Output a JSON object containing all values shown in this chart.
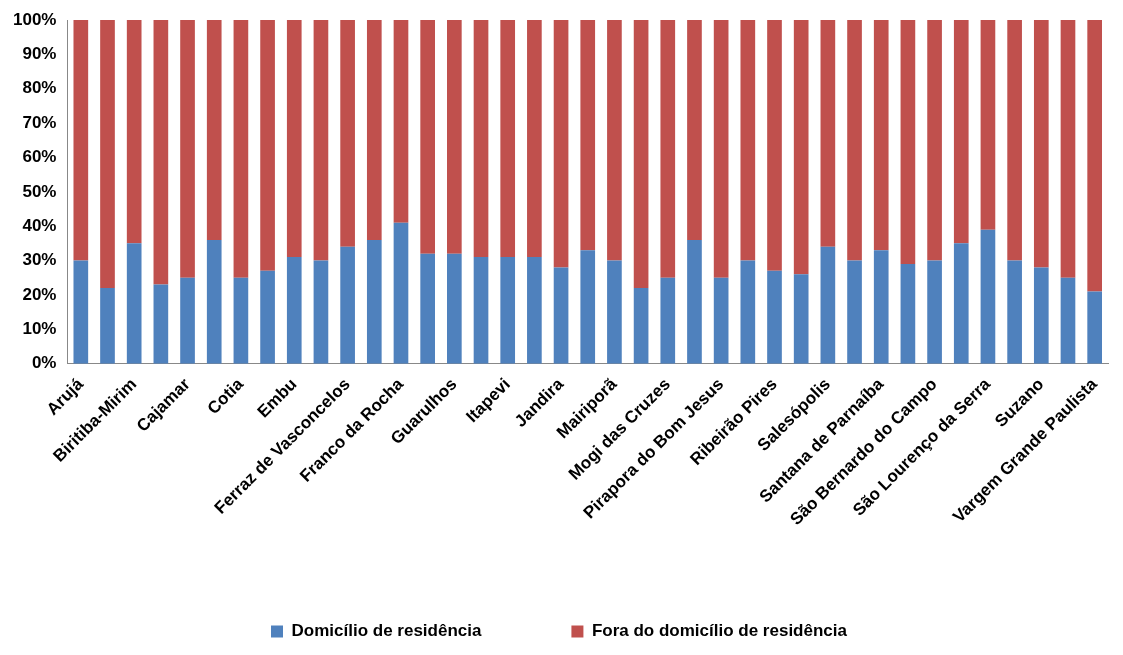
{
  "chart_data": {
    "type": "bar",
    "stacked": true,
    "categories": [
      "Arujá",
      null,
      "Biritiba-Mirim",
      null,
      "Cajamar",
      null,
      "Cotia",
      null,
      "Embu",
      null,
      "Ferraz de Vasconcelos",
      null,
      "Franco da Rocha",
      null,
      "Guarulhos",
      null,
      "Itapevi",
      null,
      "Jandira",
      null,
      "Mairiporã",
      null,
      "Mogi das Cruzes",
      null,
      "Pirapora do Bom Jesus",
      null,
      "Ribeirão Pires",
      null,
      "Salesópolis",
      null,
      "Santana de Parnaíba",
      null,
      "São Bernardo do Campo",
      null,
      "São Lourenço da Serra",
      null,
      "Suzano",
      null,
      "Vargem Grande Paulista"
    ],
    "series": [
      {
        "name": "Domicílio de residência",
        "color": "#4f81bd",
        "values": [
          30,
          22,
          35,
          23,
          25,
          36,
          25,
          27,
          31,
          30,
          34,
          36,
          41,
          32,
          32,
          31,
          31,
          31,
          28,
          33,
          30,
          22,
          25,
          36,
          25,
          30,
          27,
          26,
          34,
          30,
          33,
          29,
          30,
          35,
          39,
          30,
          28,
          25,
          21
        ]
      },
      {
        "name": "Fora do domicílio de residência",
        "color": "#c0504d",
        "values": [
          70,
          78,
          65,
          77,
          75,
          64,
          75,
          73,
          69,
          70,
          66,
          64,
          59,
          68,
          68,
          69,
          69,
          69,
          72,
          67,
          70,
          78,
          75,
          64,
          75,
          70,
          73,
          74,
          66,
          70,
          67,
          71,
          70,
          65,
          61,
          70,
          72,
          75,
          79
        ]
      }
    ],
    "ylim": [
      0,
      100
    ],
    "yticks": [
      {
        "value": 0,
        "label": "0%"
      },
      {
        "value": 10,
        "label": "10%"
      },
      {
        "value": 20,
        "label": "20%"
      },
      {
        "value": 30,
        "label": "30%"
      },
      {
        "value": 40,
        "label": "40%"
      },
      {
        "value": 50,
        "label": "50%"
      },
      {
        "value": 60,
        "label": "60%"
      },
      {
        "value": 70,
        "label": "70%"
      },
      {
        "value": 80,
        "label": "80%"
      },
      {
        "value": 90,
        "label": "90%"
      },
      {
        "value": 100,
        "label": "100%"
      }
    ],
    "grid": false,
    "legend": "bottom"
  }
}
